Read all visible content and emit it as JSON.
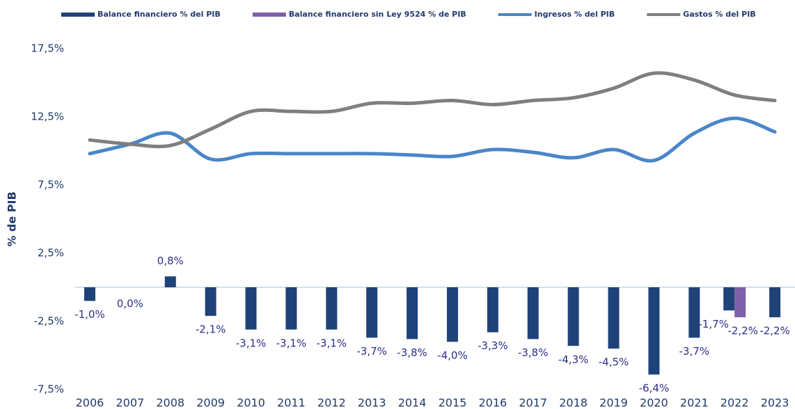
{
  "chart_data": {
    "type": "bar-line",
    "y_axis_label": "% de PIB",
    "categories": [
      "2006",
      "2007",
      "2008",
      "2009",
      "2010",
      "2011",
      "2012",
      "2013",
      "2014",
      "2015",
      "2016",
      "2017",
      "2018",
      "2019",
      "2020",
      "2021",
      "2022",
      "2023"
    ],
    "series": [
      {
        "name": "Balance financiero % del PIB",
        "type": "bar",
        "color": "#1f4279",
        "values": [
          -1.0,
          0.0,
          0.8,
          -2.1,
          -3.1,
          -3.1,
          -3.1,
          -3.7,
          -3.8,
          -4.0,
          -3.3,
          -3.8,
          -4.3,
          -4.5,
          -6.4,
          -3.7,
          -1.7,
          -2.2
        ],
        "value_labels": [
          "-1,0%",
          "0,0%",
          "0,8%",
          "-2,1%",
          "-3,1%",
          "-3,1%",
          "-3,1%",
          "-3,7%",
          "-3,8%",
          "-4,0%",
          "-3,3%",
          "-3,8%",
          "-4,3%",
          "-4,5%",
          "-6,4%",
          "-3,7%",
          "-1,7%",
          "-2,2%"
        ]
      },
      {
        "name": "Balance financiero sin Ley 9524 % de PIB",
        "type": "bar",
        "color": "#7e5fa8",
        "values": [
          null,
          null,
          null,
          null,
          null,
          null,
          null,
          null,
          null,
          null,
          null,
          null,
          null,
          null,
          null,
          null,
          -2.2,
          null
        ],
        "value_labels": [
          null,
          null,
          null,
          null,
          null,
          null,
          null,
          null,
          null,
          null,
          null,
          null,
          null,
          null,
          null,
          null,
          "-2,2%",
          null
        ]
      },
      {
        "name": "Ingresos % del PIB",
        "type": "line",
        "color": "#4a86c8",
        "values": [
          9.8,
          10.5,
          11.3,
          9.4,
          9.8,
          9.8,
          9.8,
          9.8,
          9.7,
          9.6,
          10.1,
          9.9,
          9.5,
          10.1,
          9.3,
          11.3,
          12.4,
          11.4
        ]
      },
      {
        "name": "Gastos % del PIB",
        "type": "line",
        "color": "#7f7f7f",
        "values": [
          10.8,
          10.5,
          10.4,
          11.6,
          12.9,
          12.9,
          12.9,
          13.5,
          13.5,
          13.7,
          13.4,
          13.7,
          13.9,
          14.6,
          15.7,
          15.2,
          14.1,
          13.7
        ]
      }
    ],
    "ylim": [
      -7.5,
      17.5
    ],
    "yticks": [
      {
        "value": -7.5,
        "label": "-7,5%"
      },
      {
        "value": -2.5,
        "label": "-2,5%"
      },
      {
        "value": 2.5,
        "label": "2,5%"
      },
      {
        "value": 7.5,
        "label": "7,5%"
      },
      {
        "value": 12.5,
        "label": "12,5%"
      },
      {
        "value": 17.5,
        "label": "17,5%"
      }
    ]
  }
}
